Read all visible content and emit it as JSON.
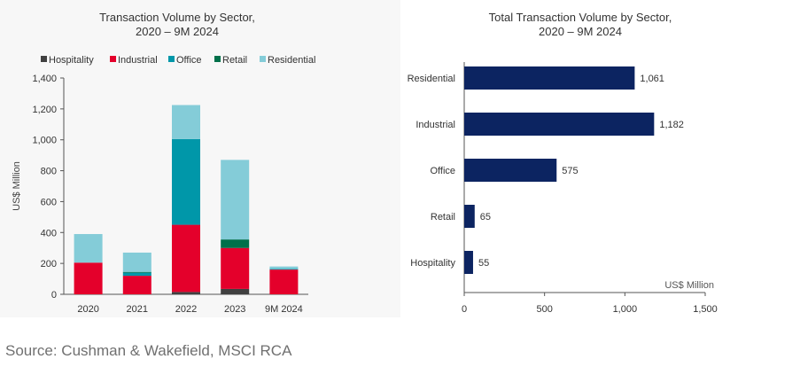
{
  "source_note": "Source: Cushman & Wakefield, MSCI RCA",
  "chart_data": [
    {
      "type": "bar",
      "stacked": true,
      "title": "Transaction Volume by Sector,",
      "subtitle": "2020 – 9M 2024",
      "ylabel": "US$ Million",
      "xlabel": "",
      "ylim": [
        0,
        1400
      ],
      "yticks": [
        0,
        200,
        400,
        600,
        800,
        1000,
        1200,
        1400
      ],
      "ytick_labels": [
        "0",
        "200",
        "400",
        "600",
        "800",
        "1,000",
        "1,200",
        "1,400"
      ],
      "categories": [
        "2020",
        "2021",
        "2022",
        "2023",
        "9M 2024"
      ],
      "legend_position": "top",
      "series": [
        {
          "name": "Hospitality",
          "color": "#404040",
          "values": [
            0,
            0,
            15,
            35,
            0
          ]
        },
        {
          "name": "Industrial",
          "color": "#e4002b",
          "values": [
            205,
            120,
            435,
            265,
            160
          ]
        },
        {
          "name": "Office",
          "color": "#0097a9",
          "values": [
            0,
            20,
            555,
            0,
            5
          ]
        },
        {
          "name": "Retail",
          "color": "#00704a",
          "values": [
            0,
            5,
            0,
            55,
            0
          ]
        },
        {
          "name": "Residential",
          "color": "#84ccd8",
          "values": [
            185,
            125,
            220,
            515,
            15
          ]
        }
      ]
    },
    {
      "type": "bar",
      "orientation": "horizontal",
      "title": "Total Transaction Volume by Sector,",
      "subtitle": "2020 – 9M 2024",
      "xlabel": "US$ Million",
      "xlim": [
        0,
        1500
      ],
      "xticks": [
        0,
        500,
        1000,
        1500
      ],
      "xtick_labels": [
        "0",
        "500",
        "1,000",
        "1,500"
      ],
      "categories": [
        "Residential",
        "Industrial",
        "Office",
        "Retail",
        "Hospitality"
      ],
      "values": [
        1061,
        1182,
        575,
        65,
        55
      ],
      "value_labels": [
        "1,061",
        "1,182",
        "575",
        "65",
        "55"
      ],
      "color": "#0c2461"
    }
  ]
}
